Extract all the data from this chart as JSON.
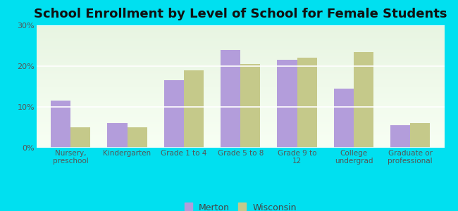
{
  "title": "School Enrollment by Level of School for Female Students",
  "categories": [
    "Nursery,\npreschool",
    "Kindergarten",
    "Grade 1 to 4",
    "Grade 5 to 8",
    "Grade 9 to\n12",
    "College\nundergrad",
    "Graduate or\nprofessional"
  ],
  "merton_values": [
    11.5,
    6.0,
    16.5,
    24.0,
    21.5,
    14.5,
    5.5
  ],
  "wisconsin_values": [
    5.0,
    5.0,
    19.0,
    20.5,
    22.0,
    23.5,
    6.0
  ],
  "merton_color": "#b39ddb",
  "wisconsin_color": "#c5c98a",
  "background_outer": "#00e0f0",
  "background_inner_top": "#e8f5e9",
  "background_inner_bottom": "#f5fff0",
  "ylim": [
    0,
    30
  ],
  "yticks": [
    0,
    10,
    20,
    30
  ],
  "ytick_labels": [
    "0%",
    "10%",
    "20%",
    "30%"
  ],
  "title_fontsize": 13,
  "tick_fontsize": 8,
  "legend_labels": [
    "Merton",
    "Wisconsin"
  ],
  "bar_width": 0.35
}
